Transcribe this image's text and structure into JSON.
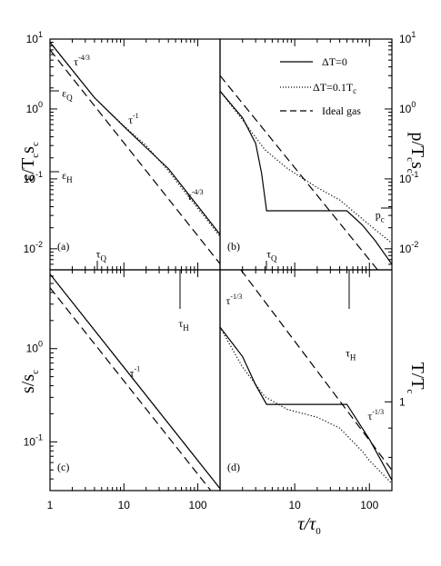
{
  "figure": {
    "legend": [
      {
        "label": "ΔT=0",
        "style": "solid"
      },
      {
        "label": "ΔT=0.1T",
        "sub": "c",
        "style": "dotted"
      },
      {
        "label": "Ideal gas",
        "style": "dashed"
      }
    ],
    "y_labels": {
      "a": "ε/T",
      "a_sub1": "c",
      "a_mid": "s",
      "a_sub2": "c",
      "b": "p/T",
      "b_sub1": "c",
      "b_mid": "s",
      "b_sub2": "c",
      "c": "s/s",
      "c_sub": "c",
      "d": "T/T",
      "d_sub": "c"
    },
    "x_label": {
      "main": "τ/τ",
      "sub": "0"
    }
  },
  "chart_data": [
    {
      "panel": "a",
      "type": "line",
      "scale": "log-log",
      "xlim": [
        1,
        200
      ],
      "ylim": [
        0.005,
        10
      ],
      "panel_label": "(a)",
      "yticks": [
        {
          "v": 10,
          "b": "10",
          "e": "1"
        },
        {
          "v": 1,
          "b": "10",
          "e": "0"
        },
        {
          "v": 0.1,
          "b": "10",
          "e": "-1"
        },
        {
          "v": 0.01,
          "b": "10",
          "e": "-2"
        }
      ],
      "annotations": [
        {
          "text": "τ",
          "sup": "-4/3",
          "x": 2.1,
          "y": 4.2
        },
        {
          "text": "τ",
          "sup": "-1",
          "x": 11.5,
          "y": 0.62
        },
        {
          "text": "τ",
          "sup": "-4/3",
          "x": 72,
          "y": 0.05
        },
        {
          "text": "ε",
          "sub": "Q",
          "x": 1.45,
          "y": 1.5
        },
        {
          "text": "ε",
          "sub": "H",
          "x": 1.45,
          "y": 0.1
        },
        {
          "text": "τ",
          "sub": "Q",
          "x": 4.2,
          "y": 0.0075
        }
      ],
      "series": [
        {
          "style": "solid",
          "x": [
            1,
            2,
            4,
            10,
            20,
            40,
            100,
            200
          ],
          "y": [
            9.0,
            3.6,
            1.45,
            0.56,
            0.28,
            0.14,
            0.041,
            0.016
          ]
        },
        {
          "style": "dotted",
          "x": [
            1,
            2,
            4,
            10,
            20,
            40,
            100,
            200
          ],
          "y": [
            9.0,
            3.6,
            1.45,
            0.57,
            0.3,
            0.13,
            0.038,
            0.015
          ]
        },
        {
          "style": "dashed",
          "x": [
            1,
            200
          ],
          "y": [
            7.0,
            0.0061
          ]
        }
      ]
    },
    {
      "panel": "b",
      "type": "line",
      "scale": "log-log",
      "xlim": [
        1,
        200
      ],
      "ylim": [
        0.005,
        10
      ],
      "panel_label": "(b)",
      "yticks": [
        {
          "v": 10,
          "b": "10",
          "e": "1"
        },
        {
          "v": 1,
          "b": "10",
          "e": "0"
        },
        {
          "v": 0.1,
          "b": "10",
          "e": "-1"
        },
        {
          "v": 0.01,
          "b": "10",
          "e": "-2"
        }
      ],
      "annotations": [
        {
          "text": "τ",
          "sub": "Q",
          "x": 4.2,
          "y": 0.0075
        },
        {
          "text": "p",
          "sub": "c",
          "x": 120,
          "y": 0.027
        }
      ],
      "series": [
        {
          "style": "solid",
          "x": [
            1,
            2,
            3,
            3.6,
            4.2,
            50,
            80,
            120,
            200
          ],
          "y": [
            1.8,
            0.75,
            0.32,
            0.12,
            0.035,
            0.035,
            0.022,
            0.013,
            0.006
          ]
        },
        {
          "style": "dotted",
          "x": [
            1,
            2,
            4,
            8,
            20,
            40,
            100,
            200
          ],
          "y": [
            1.8,
            0.7,
            0.26,
            0.14,
            0.075,
            0.05,
            0.022,
            0.012
          ]
        },
        {
          "style": "dashed",
          "x": [
            1,
            200
          ],
          "y": [
            3.0,
            0.0028
          ]
        }
      ]
    },
    {
      "panel": "c",
      "type": "line",
      "scale": "log-log",
      "xlim": [
        1,
        200
      ],
      "ylim": [
        0.03,
        7
      ],
      "panel_label": "(c)",
      "xticks": [
        {
          "v": 1,
          "t": "1"
        },
        {
          "v": 10,
          "t": "10"
        },
        {
          "v": 100,
          "t": "100"
        }
      ],
      "yticks": [
        {
          "v": 1,
          "b": "10",
          "e": "0"
        },
        {
          "v": 0.1,
          "b": "10",
          "e": "-1"
        }
      ],
      "annotations": [
        {
          "text": "τ",
          "sub": "H",
          "x": 55,
          "y": 1.7
        },
        {
          "text": "τ",
          "sup": "-1",
          "x": 12,
          "y": 0.5
        }
      ],
      "series": [
        {
          "style": "solid",
          "x": [
            1,
            200
          ],
          "y": [
            6.3,
            0.0315
          ]
        },
        {
          "style": "dotted",
          "x": [
            1,
            200
          ],
          "y": [
            6.3,
            0.0315
          ]
        },
        {
          "style": "dashed",
          "x": [
            1,
            200
          ],
          "y": [
            4.5,
            0.0225
          ]
        }
      ]
    },
    {
      "panel": "d",
      "type": "line",
      "scale": "log-log",
      "xlim": [
        1,
        200
      ],
      "ylim": [
        0.7,
        1.7
      ],
      "panel_label": "(d)",
      "xticks": [
        {
          "v": 10,
          "t": "10"
        },
        {
          "v": 100,
          "t": "100"
        }
      ],
      "yticks": [
        {
          "v": 1,
          "t": "1"
        }
      ],
      "annotations": [
        {
          "text": "τ",
          "sup": "-1/3",
          "x": 1.2,
          "y": 1.48
        },
        {
          "text": "τ",
          "sub": "H",
          "x": 48,
          "y": 1.2
        },
        {
          "text": "τ",
          "sup": "-1/3",
          "x": 95,
          "y": 0.93
        }
      ],
      "series": [
        {
          "style": "solid",
          "x": [
            1,
            2,
            3,
            4.2,
            50,
            100,
            200
          ],
          "y": [
            1.35,
            1.2,
            1.07,
            0.99,
            0.99,
            0.86,
            0.73
          ]
        },
        {
          "style": "dotted",
          "x": [
            1,
            2,
            4,
            8,
            20,
            40,
            80,
            100,
            200
          ],
          "y": [
            1.35,
            1.15,
            1.02,
            0.97,
            0.94,
            0.9,
            0.82,
            0.79,
            0.72
          ]
        },
        {
          "style": "dashed",
          "x": [
            1.9,
            200
          ],
          "y": [
            1.7,
            0.76
          ]
        }
      ]
    }
  ]
}
